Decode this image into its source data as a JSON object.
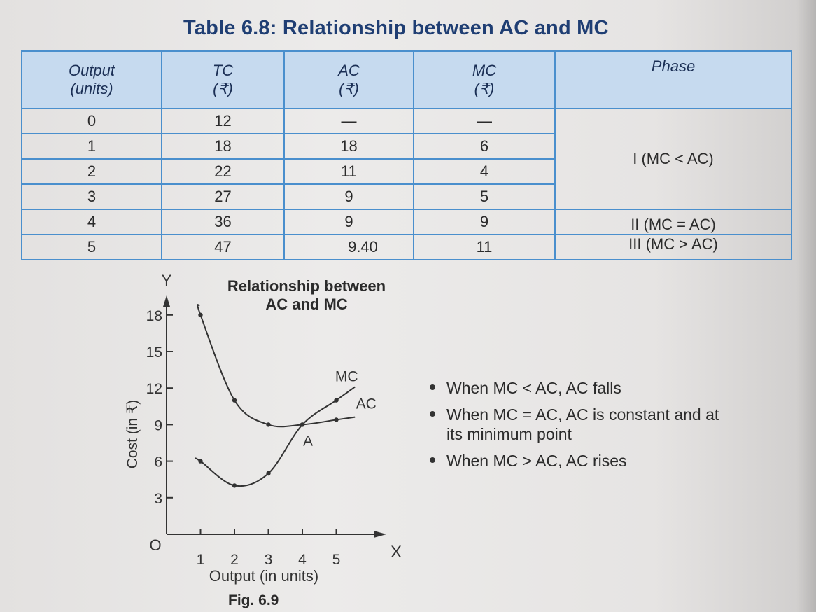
{
  "table": {
    "title": "Table 6.8: Relationship between AC and MC",
    "headers": [
      {
        "line1": "Output",
        "line2": "(units)"
      },
      {
        "line1": "TC",
        "line2": "(₹)"
      },
      {
        "line1": "AC",
        "line2": "(₹)"
      },
      {
        "line1": "MC",
        "line2": "(₹)"
      },
      {
        "line1": "Phase",
        "line2": ""
      }
    ],
    "rows": [
      {
        "output": "0",
        "tc": "12",
        "ac": "—",
        "mc": "—"
      },
      {
        "output": "1",
        "tc": "18",
        "ac": "18",
        "mc": "6"
      },
      {
        "output": "2",
        "tc": "22",
        "ac": "11",
        "mc": "4"
      },
      {
        "output": "3",
        "tc": "27",
        "ac": "9",
        "mc": "5"
      },
      {
        "output": "4",
        "tc": "36",
        "ac": "9",
        "mc": "9"
      },
      {
        "output": "5",
        "tc": "47",
        "ac": "9.40",
        "mc": "11"
      }
    ],
    "phases": {
      "phase1": "I (MC < AC)",
      "phase2": "II (MC = AC)",
      "phase3": "III (MC > AC)"
    }
  },
  "figure": {
    "title_line1": "Relationship between",
    "title_line2": "AC and MC",
    "caption": "Fig. 6.9",
    "bullets": [
      "When MC < AC, AC falls",
      "When MC = AC, AC is constant and at its minimum point",
      "When MC > AC, AC rises"
    ]
  },
  "chart_data": {
    "type": "line",
    "title": "Relationship between AC and MC",
    "xlabel": "Output (in units)",
    "ylabel": "Cost (in ₹)",
    "x_axis_letter": "X",
    "y_axis_letter": "Y",
    "origin_label": "O",
    "xlim": [
      0,
      6
    ],
    "ylim": [
      0,
      18
    ],
    "x_ticks": [
      "1",
      "2",
      "3",
      "4",
      "5"
    ],
    "y_ticks": [
      "3",
      "6",
      "9",
      "12",
      "15",
      "18"
    ],
    "grid": false,
    "series": [
      {
        "name": "AC",
        "x": [
          1,
          2,
          3,
          4,
          5
        ],
        "y": [
          18,
          11,
          9,
          9,
          9.4
        ],
        "color": "#333333"
      },
      {
        "name": "MC",
        "x": [
          1,
          2,
          3,
          4,
          5
        ],
        "y": [
          6,
          4,
          5,
          9,
          11
        ],
        "color": "#333333"
      }
    ],
    "annotations": [
      {
        "text": "A",
        "x": 4,
        "y": 9
      }
    ]
  }
}
